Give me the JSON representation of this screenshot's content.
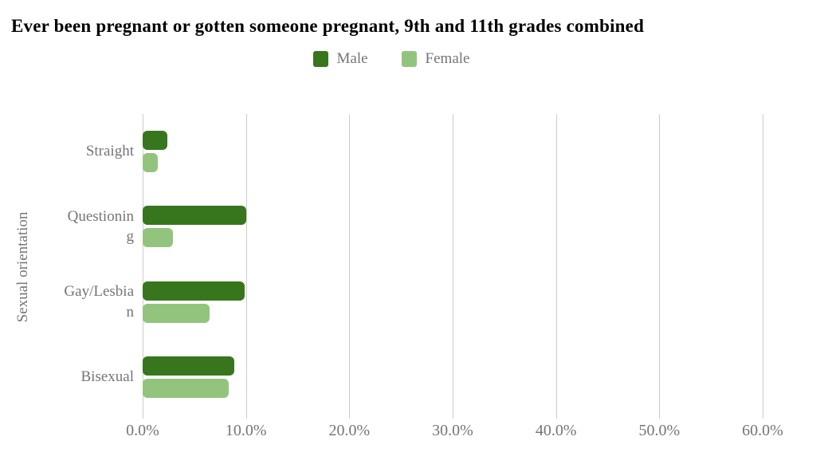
{
  "title": "Ever been pregnant or gotten someone pregnant, 9th and 11th grades combined",
  "colors": {
    "male": "#38761d",
    "female": "#93c47d",
    "gridline": "#cccccc",
    "axis_text": "#757575",
    "title_text": "#000000",
    "background": "#ffffff"
  },
  "chart_data": {
    "type": "bar",
    "orientation": "horizontal",
    "title": "Ever been pregnant or gotten someone pregnant, 9th and 11th grades combined",
    "xlabel": "",
    "ylabel": "Sexual orientation",
    "categories": [
      "Straight",
      "Questioning",
      "Gay/Lesbian",
      "Bisexual"
    ],
    "category_display": [
      "Straight",
      "Questionin\ng",
      "Gay/Lesbia\nn",
      "Bisexual"
    ],
    "series": [
      {
        "name": "Male",
        "color": "#38761d",
        "values": [
          2.4,
          10.0,
          9.9,
          8.9
        ]
      },
      {
        "name": "Female",
        "color": "#93c47d",
        "values": [
          1.5,
          2.9,
          6.5,
          8.3
        ]
      }
    ],
    "xlim": [
      0,
      60
    ],
    "x_tick_values": [
      0,
      10,
      20,
      30,
      40,
      50,
      60
    ],
    "x_tick_labels": [
      "0.0%",
      "10.0%",
      "20.0%",
      "30.0%",
      "40.0%",
      "50.0%",
      "60.0%"
    ],
    "grid": true,
    "legend_position": "top-center"
  }
}
